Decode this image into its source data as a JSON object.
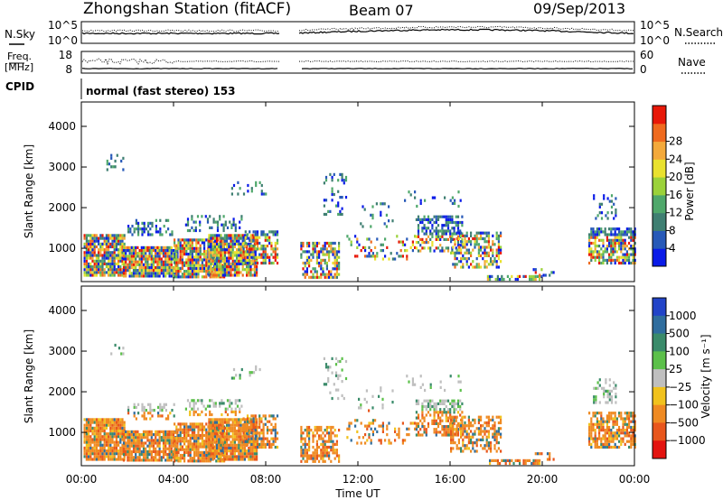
{
  "header": {
    "station": "Zhongshan Station (fitACF)",
    "beam": "Beam 07",
    "date": "09/Sep/2013"
  },
  "top_panel": {
    "left_label": "N.Sky",
    "right_label": "N.Search",
    "left_ticks": [
      "10^5",
      "10^0"
    ],
    "right_ticks": [
      "10^5",
      "10^0"
    ]
  },
  "freq_panel": {
    "left_label_1": "Freq.",
    "left_label_2": "[MHz]",
    "left_ticks": [
      "18",
      "8"
    ],
    "right_label": "Nave",
    "right_ticks": [
      "60",
      "0"
    ]
  },
  "cpid": {
    "label": "CPID",
    "value": "normal (fast stereo) 153"
  },
  "chart_data": [
    {
      "type": "heatmap",
      "name": "power",
      "ylabel": "Slant Range [km]",
      "yticks": [
        "1000",
        "2000",
        "3000",
        "4000"
      ],
      "ylim": [
        180,
        4600
      ],
      "colorbar": {
        "label": "Power [dB]",
        "ticks": [
          "4",
          "8",
          "12",
          "16",
          "20",
          "24",
          "28"
        ],
        "range": [
          0,
          32
        ],
        "colors": [
          "#0a1be8",
          "#2759b8",
          "#3f7f72",
          "#4fa86b",
          "#9bd23a",
          "#e9e12e",
          "#f3a93b",
          "#ef6a1e",
          "#e81808"
        ]
      }
    },
    {
      "type": "heatmap",
      "name": "velocity",
      "ylabel": "Slant Range [km]",
      "yticks": [
        "1000",
        "2000",
        "3000",
        "4000"
      ],
      "ylim": [
        180,
        4600
      ],
      "colorbar": {
        "label": "Velocity [m s⁻¹]",
        "ticks": [
          "1000",
          "500",
          "100",
          "25",
          "−25",
          "−100",
          "−500",
          "−1000"
        ],
        "colors": [
          "#2244c8",
          "#2f6d9e",
          "#3a8b6a",
          "#5cc04a",
          "#bfbfbf",
          "#f1c21d",
          "#ef8a22",
          "#e8561c",
          "#e3130f"
        ]
      }
    }
  ],
  "xaxis": {
    "label": "Time UT",
    "ticks": [
      "00:00",
      "04:00",
      "08:00",
      "12:00",
      "16:00",
      "20:00",
      "00:00"
    ],
    "range_hours": [
      0,
      24
    ]
  }
}
